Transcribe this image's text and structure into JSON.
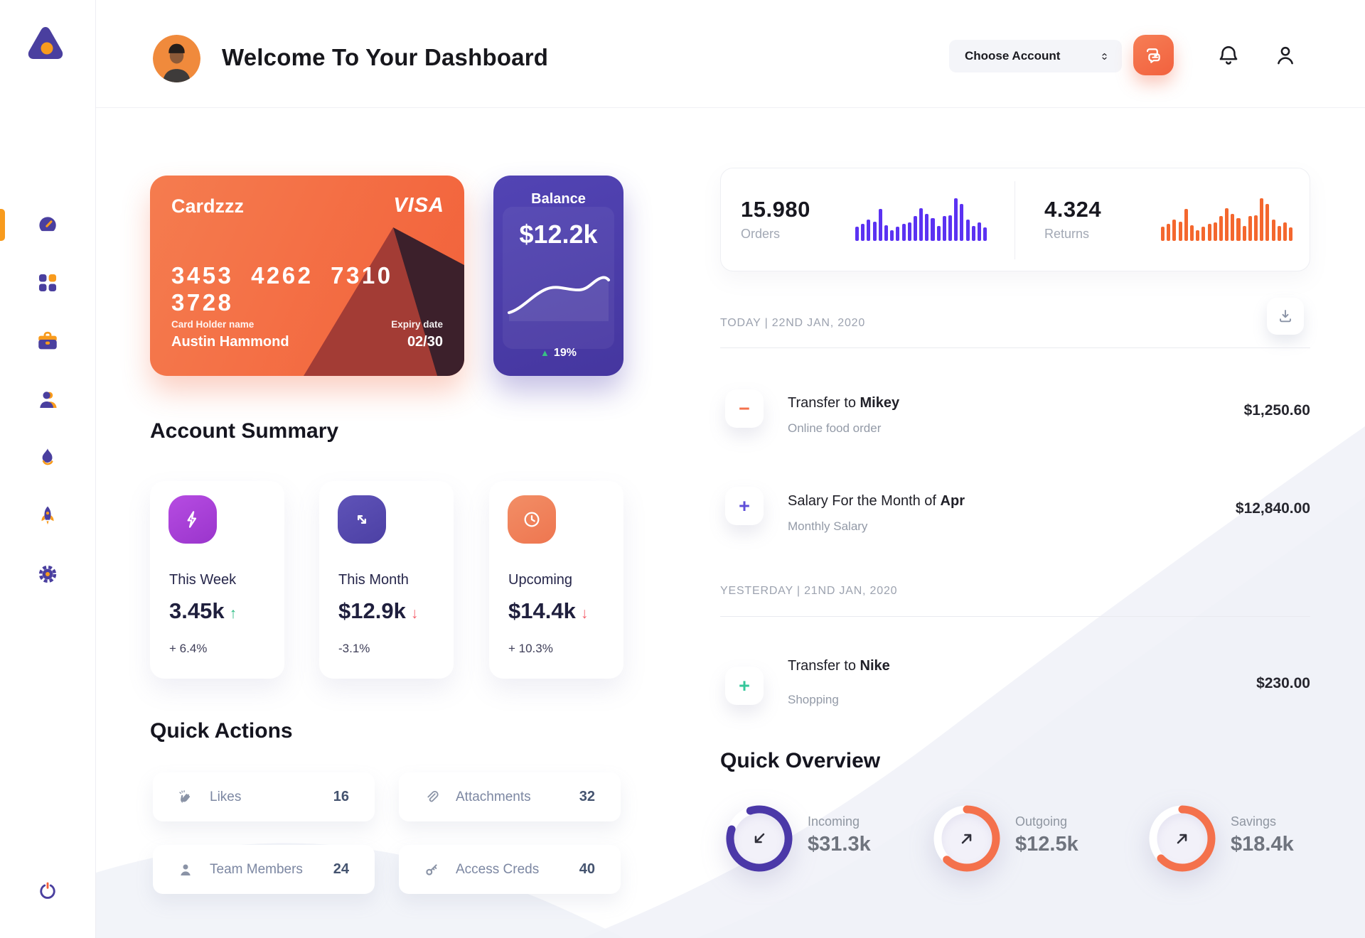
{
  "sidebar": {
    "logo_icon": "triangle-logo",
    "nav_items": [
      {
        "name": "dashboard",
        "icon": "speedometer",
        "active": true
      },
      {
        "name": "apps",
        "icon": "grid",
        "active": false
      },
      {
        "name": "portfolio",
        "icon": "briefcase",
        "active": false
      },
      {
        "name": "contacts",
        "icon": "person",
        "active": false
      },
      {
        "name": "trending",
        "icon": "flame",
        "active": false
      },
      {
        "name": "launch",
        "icon": "rocket",
        "active": false
      },
      {
        "name": "settings",
        "icon": "gear",
        "active": false
      }
    ],
    "power_icon": "power"
  },
  "header": {
    "title": "Welcome To Your Dashboard",
    "avatar_icon": "user-photo",
    "account_selector": {
      "label": "Choose Account",
      "chevron_icon": "up-down-chevrons"
    },
    "chat_icon": "chat-bubbles",
    "bell_icon": "bell",
    "user_icon": "user"
  },
  "credit_card": {
    "name": "Cardzzz",
    "brand": "VISA",
    "number": "3453 4262 7310 3728",
    "holder_label": "Card Holder name",
    "holder": "Austin Hammond",
    "expiry_label": "Expiry date",
    "expiry": "02/30"
  },
  "balance_card": {
    "label": "Balance",
    "value": "$12.2k",
    "change": "19%"
  },
  "stats": {
    "orders": {
      "value": "15.980",
      "label": "Orders",
      "color": "#5B32F2",
      "bars": [
        20,
        24,
        30,
        27,
        45,
        22,
        15,
        20,
        24,
        26,
        35,
        46,
        38,
        32,
        21,
        35,
        36,
        60,
        52,
        30,
        21,
        26,
        19
      ]
    },
    "returns": {
      "value": "4.324",
      "label": "Returns",
      "color": "#F4672E",
      "bars": [
        20,
        24,
        30,
        27,
        45,
        22,
        15,
        20,
        24,
        26,
        35,
        46,
        38,
        32,
        21,
        35,
        36,
        60,
        52,
        30,
        21,
        26,
        19
      ]
    }
  },
  "account_summary": {
    "title": "Account Summary",
    "cards": [
      {
        "label": "This Week",
        "value": "3.45k",
        "delta": "+ 6.4%",
        "trend": "up",
        "icon": "lightning",
        "icon_bg": "#A93FD6"
      },
      {
        "label": "This Month",
        "value": "$12.9k",
        "delta": "-3.1%",
        "trend": "down",
        "icon": "diagonal-arrows",
        "icon_bg": "#564AAE"
      },
      {
        "label": "Upcoming",
        "value": "$14.4k",
        "delta": "+ 10.3%",
        "trend": "down",
        "icon": "clock",
        "icon_bg": "#F0825D"
      }
    ]
  },
  "quick_actions": {
    "title": "Quick Actions",
    "items": [
      {
        "label": "Likes",
        "count": "16",
        "icon": "clap-hands"
      },
      {
        "label": "Attachments",
        "count": "32",
        "icon": "paperclip"
      },
      {
        "label": "Team Members",
        "count": "24",
        "icon": "person"
      },
      {
        "label": "Access Creds",
        "count": "40",
        "icon": "key"
      }
    ]
  },
  "transactions": {
    "download_icon": "download",
    "sections": [
      {
        "date_label": "TODAY | 22ND JAN, 2020",
        "items": [
          {
            "sign": "minus",
            "sign_color": "#F4714C",
            "title_prefix": "Transfer to ",
            "title_bold": "Mikey",
            "subtitle": "Online food order",
            "amount": "$1,250.60"
          },
          {
            "sign": "plus",
            "sign_color": "#5F4FD8",
            "title_prefix": "Salary For the Month of ",
            "title_bold": "Apr",
            "subtitle": "Monthly Salary",
            "amount": "$12,840.00"
          }
        ]
      },
      {
        "date_label": "YESTERDAY | 21ND JAN, 2020",
        "items": [
          {
            "sign": "plus",
            "sign_color": "#35C79B",
            "title_prefix": "Transfer to ",
            "title_bold": "Nike",
            "subtitle": "Shopping",
            "amount": "$230.00"
          }
        ]
      }
    ]
  },
  "quick_overview": {
    "title": "Quick Overview",
    "items": [
      {
        "label": "Incoming",
        "value": "$31.3k",
        "percent": 85,
        "start_angle": 252,
        "color": "#4B38A8",
        "direction": "down-left"
      },
      {
        "label": "Outgoing",
        "value": "$12.5k",
        "percent": 62,
        "start_angle": -90,
        "color": "#F4714C",
        "direction": "up-right"
      },
      {
        "label": "Savings",
        "value": "$18.4k",
        "percent": 63,
        "start_angle": -90,
        "color": "#F4714C",
        "direction": "up-right"
      }
    ]
  }
}
